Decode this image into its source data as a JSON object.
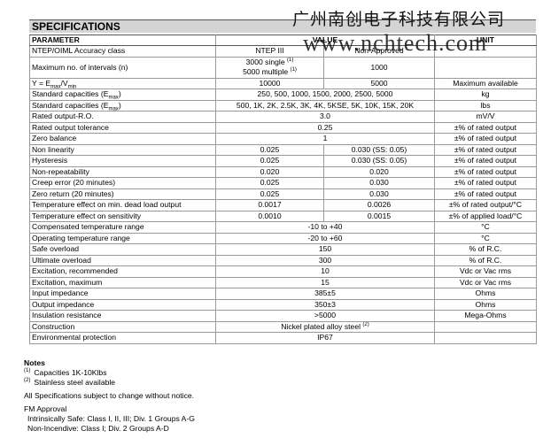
{
  "title": "SPECIFICATIONS",
  "watermark": {
    "company": "广州南创电子科技有限公司",
    "url": "www.nchtech.com"
  },
  "table": {
    "header": [
      "PARAMETER",
      "VALUE",
      "UNIT"
    ],
    "rows": [
      {
        "param": "NTEP/OIML Accuracy class",
        "values": [
          "NTEP III",
          "Non-Approved"
        ]
      },
      {
        "param": "Maximum no. of intervals (n)",
        "values": [
          [
            [
              "3000 single ",
              "(1)"
            ],
            [
              "5000 multiple ",
              "(1)"
            ]
          ],
          "1000"
        ]
      },
      {
        "param": [
          "Y = E",
          "max",
          "/V",
          "min"
        ],
        "values": [
          "10000",
          "5000"
        ],
        "unit": "Maximum available"
      },
      {
        "param": [
          "Standard capacities (E",
          "max",
          ")"
        ],
        "values": [
          "250, 500, 1000, 1500, 2000, 2500, 5000"
        ],
        "unit": "kg"
      },
      {
        "param": [
          "Standard capacities (E",
          "max",
          ")"
        ],
        "values": [
          "500, 1K, 2K, 2.5K, 3K, 4K, 5KSE, 5K, 10K, 15K, 20K"
        ],
        "unit": "lbs"
      },
      {
        "param": "Rated output-R.O.",
        "values": [
          "3.0"
        ],
        "unit": "mV/V"
      },
      {
        "param": "Rated output tolerance",
        "values": [
          "0.25"
        ],
        "unit": "±% of rated output"
      },
      {
        "param": "Zero balance",
        "values": [
          "1"
        ],
        "unit": "±% of rated output"
      },
      {
        "param": "Non linearity",
        "values": [
          "0.025",
          "0.030 (SS: 0.05)"
        ],
        "unit": "±% of rated output"
      },
      {
        "param": "Hysteresis",
        "values": [
          "0.025",
          "0.030 (SS: 0.05)"
        ],
        "unit": "±% of rated output"
      },
      {
        "param": "Non-repeatability",
        "values": [
          "0.020",
          "0.020"
        ],
        "unit": "±% of rated output"
      },
      {
        "param": "Creep error (20 minutes)",
        "values": [
          "0.025",
          "0.030"
        ],
        "unit": "±% of rated output"
      },
      {
        "param": "Zero return (20 minutes)",
        "values": [
          "0.025",
          "0.030"
        ],
        "unit": "±% of rated output"
      },
      {
        "param": "Temperature effect on min. dead load output",
        "values": [
          "0.0017",
          "0.0026"
        ],
        "unit": "±% of rated output/°C"
      },
      {
        "param": "Temperature effect on sensitivity",
        "values": [
          "0.0010",
          "0.0015"
        ],
        "unit": "±% of applied load/°C"
      },
      {
        "param": "Compensated temperature range",
        "values": [
          "-10 to +40"
        ],
        "unit": "°C"
      },
      {
        "param": "Operating temperature range",
        "values": [
          "-20 to +60"
        ],
        "unit": "°C"
      },
      {
        "param": "Safe overload",
        "values": [
          "150"
        ],
        "unit": "% of R.C."
      },
      {
        "param": "Ultimate overload",
        "values": [
          "300"
        ],
        "unit": "% of R.C."
      },
      {
        "param": "Excitation, recommended",
        "values": [
          "10"
        ],
        "unit": "Vdc or Vac rms"
      },
      {
        "param": "Excitation, maximum",
        "values": [
          "15"
        ],
        "unit": "Vdc or Vac rms"
      },
      {
        "param": "Input impedance",
        "values": [
          "385±5"
        ],
        "unit": "Ohms"
      },
      {
        "param": "Output impedance",
        "values": [
          "350±3"
        ],
        "unit": "Ohms"
      },
      {
        "param": "Insulation resistance",
        "values": [
          ">5000"
        ],
        "unit": "Mega-Ohms"
      },
      {
        "param": "Construction",
        "values": [
          [
            [
              "Nickel plated alloy steel ",
              "(2)"
            ]
          ]
        ]
      },
      {
        "param": "Environmental protection",
        "values": [
          "IP67"
        ]
      }
    ]
  },
  "notes": {
    "title": "Notes",
    "items": [
      [
        "(1)",
        "Capacities 1K-10Klbs"
      ],
      [
        "(2)",
        "Stainless steel available"
      ]
    ],
    "disclaimer": "All Specifications subject to change without notice.",
    "approval_title": "FM Approval",
    "approval_lines": [
      "Intrinsically Safe: Class I, II, III; Div. 1 Groups A-G",
      "Non-Incendive: Class I; Div. 2 Groups A-D"
    ]
  }
}
